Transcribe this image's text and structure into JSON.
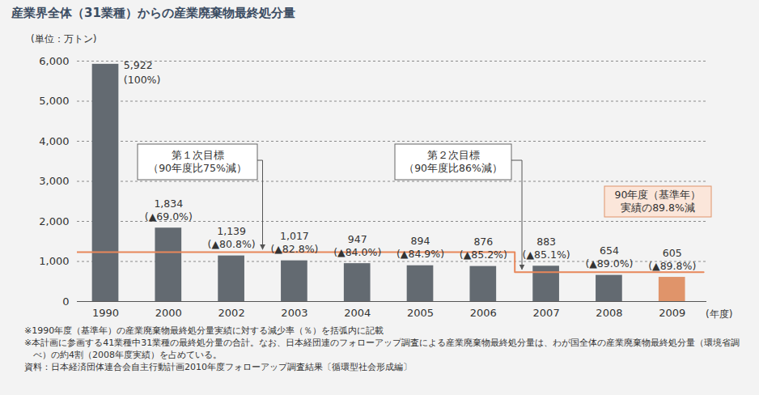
{
  "chart_data": {
    "type": "bar",
    "title": "産業界全体（31業種）からの産業廃棄物最終処分量",
    "y_label": "(単位：万トン)",
    "x_label": "(年度)",
    "categories": [
      "1990",
      "2000",
      "2002",
      "2003",
      "2004",
      "2005",
      "2006",
      "2007",
      "2008",
      "2009"
    ],
    "values": [
      5922,
      1834,
      1139,
      1017,
      947,
      894,
      876,
      883,
      654,
      605
    ],
    "value_labels": [
      "5,922",
      "1,834",
      "1,139",
      "1,017",
      "947",
      "894",
      "876",
      "883",
      "654",
      "605"
    ],
    "reduction_labels": [
      "(100%)",
      "(▲69.0%)",
      "(▲80.8%)",
      "(▲82.8%)",
      "(▲84.0%)",
      "(▲84.9%)",
      "(▲85.2%)",
      "(▲85.1%)",
      "(▲89.0%)",
      "(▲89.8%)"
    ],
    "colors": [
      "#636a71",
      "#636a71",
      "#636a71",
      "#636a71",
      "#636a71",
      "#636a71",
      "#636a71",
      "#636a71",
      "#636a71",
      "#e0946a"
    ],
    "data_labels": true,
    "ylim": [
      0,
      6000
    ],
    "yticks": [
      0,
      {
        "value": 1000,
        "label": "1,000"
      },
      {
        "value": 2000,
        "label": "2,000"
      },
      {
        "value": 3000,
        "label": "3,000"
      },
      {
        "value": 4000,
        "label": "4,000"
      },
      {
        "value": 5000,
        "label": "5,000"
      },
      {
        "value": 6000,
        "label": "6,000"
      }
    ],
    "grid": true,
    "targets": [
      {
        "label": "第１次目標\n（90年度比75%減）",
        "value": 1230,
        "from": "1990",
        "to": "2006",
        "color": "#e8875a"
      },
      {
        "label": "第２次目標\n（90年度比86%減）",
        "value": 730,
        "from": "2007",
        "to": "2009",
        "color": "#e8875a"
      }
    ],
    "annotation": "90年度（基準年）\n実績の89.8%減",
    "notes": [
      "※1990年度（基準年）の産業廃棄物最終処分量実績に対する減少率（％）を括弧内に記載",
      "※本計画に参画する41業種中31業種の最終処分量の合計。なお、日本経団連のフォローアップ調査による産業廃棄物最終処分量は、わが国全体の産業廃棄物最終処分量（環境省調べ）の約4割（2008年度実績）を占めている。"
    ],
    "source": "資料：日本経済団体連合会自主行動計画2010年度フォローアップ調査結果〔循環型社会形成編〕"
  }
}
